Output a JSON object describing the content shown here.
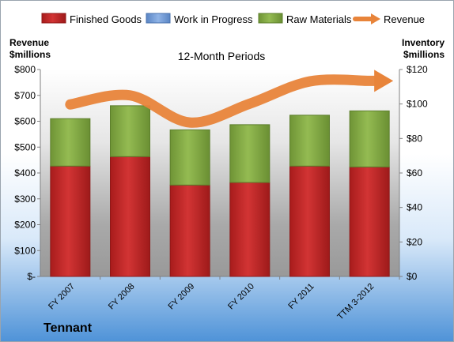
{
  "company": "Tennant",
  "chart_data": {
    "type": "bar",
    "stacked": true,
    "title": "12-Month Periods",
    "categories": [
      "FY 2007",
      "FY 2008",
      "FY 2009",
      "FY 2010",
      "FY 2011",
      "TTM 3-2012"
    ],
    "series": [
      {
        "name": "Finished Goods",
        "axis": "right",
        "color": "#cc2a2a",
        "values": [
          64,
          69.5,
          53,
          54.5,
          64,
          63.5
        ]
      },
      {
        "name": "Work in Progress",
        "axis": "right",
        "color": "#6b95d1",
        "values": [
          0,
          0,
          0,
          0,
          0,
          0
        ]
      },
      {
        "name": "Raw Materials",
        "axis": "right",
        "color": "#8ab146",
        "values": [
          27.5,
          29.5,
          32,
          33.5,
          29.5,
          32.5
        ]
      },
      {
        "name": "Revenue",
        "axis": "left",
        "type": "line",
        "color": "#e8843a",
        "values": [
          665,
          700,
          595,
          668,
          754,
          756
        ]
      }
    ],
    "yleft": {
      "label": [
        "Revenue",
        "$millions"
      ],
      "ylim": [
        0,
        800
      ],
      "ticks": [
        0,
        100,
        200,
        300,
        400,
        500,
        600,
        700,
        800
      ],
      "tick_labels": [
        "$-",
        "$100",
        "$200",
        "$300",
        "$400",
        "$500",
        "$600",
        "$700",
        "$800"
      ]
    },
    "yright": {
      "label": [
        "Inventory",
        "$millions"
      ],
      "ylim": [
        0,
        120
      ],
      "ticks": [
        0,
        20,
        40,
        60,
        80,
        100,
        120
      ],
      "tick_labels": [
        "$0",
        "$20",
        "$40",
        "$60",
        "$80",
        "$100",
        "$120"
      ]
    },
    "legend_position": "top",
    "grid": false
  }
}
